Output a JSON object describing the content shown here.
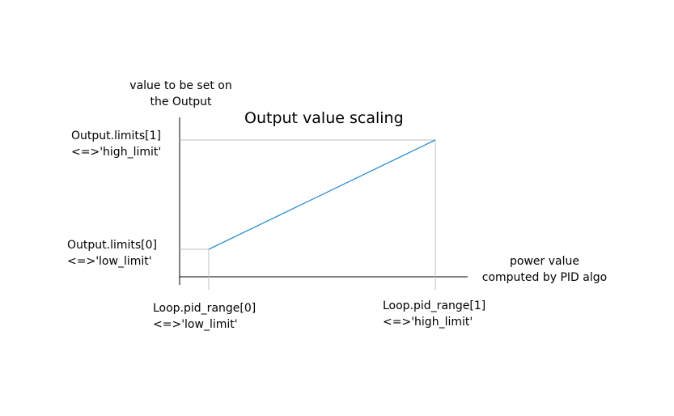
{
  "title": "Output value scaling",
  "y_axis_label": [
    "value to be set on",
    "the Output"
  ],
  "x_axis_label": [
    "power value",
    "computed by PID algo"
  ],
  "y_high_label": [
    "Output.limits[1]",
    "<=>'high_limit'"
  ],
  "y_low_label": [
    "Output.limits[0]",
    "<=>'low_limit'"
  ],
  "x_low_label": [
    "Loop.pid_range[0]",
    "<=>'low_limit'"
  ],
  "x_high_label": [
    "Loop.pid_range[1]",
    "<=>'high_limit'"
  ],
  "colors": {
    "axis": "#000000",
    "guide": "#bfbfbf",
    "curve": "#2e8fd0"
  }
}
